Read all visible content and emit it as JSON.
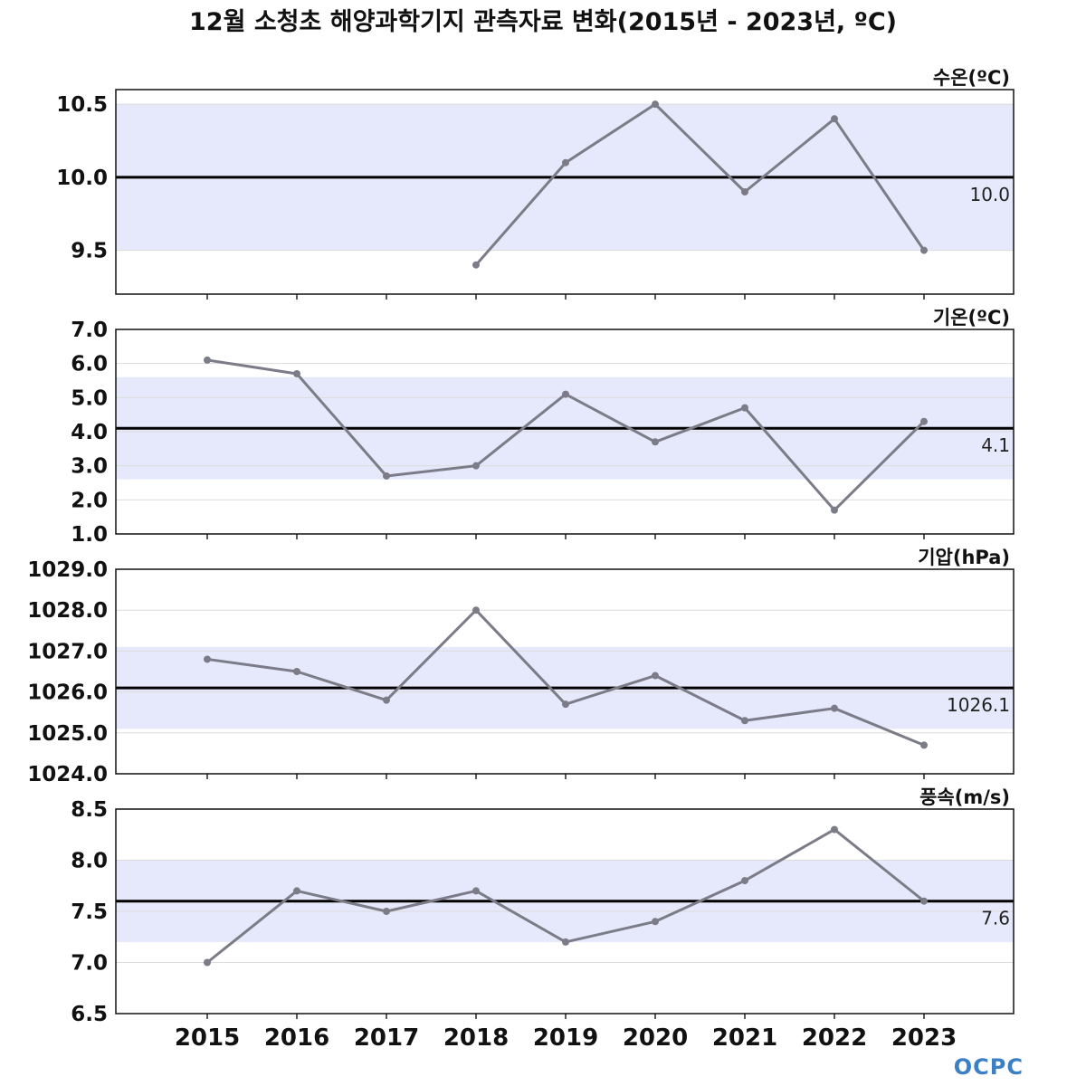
{
  "title": "12월 소청초 해양과학기지 관측자료 변화(2015년 - 2023년, ºC)",
  "logo_text": "OCPC",
  "colors": {
    "band": "#e6e9fb",
    "line": "#7c7c88",
    "mean": "#000000",
    "grid": "#dcdcdc",
    "logo": "#3b7fc4"
  },
  "chart_data": [
    {
      "type": "line",
      "title": "수온(ºC)",
      "x": [
        2015,
        2016,
        2017,
        2018,
        2019,
        2020,
        2021,
        2022,
        2023
      ],
      "series": [
        {
          "values": [
            null,
            null,
            null,
            9.4,
            10.1,
            10.5,
            9.9,
            10.4,
            9.5
          ]
        }
      ],
      "mean": 10.0,
      "mean_label": "10.0",
      "band": [
        9.5,
        10.5
      ],
      "ylim": [
        9.2,
        10.6
      ],
      "yticks": [
        9.5,
        10.0,
        10.5
      ],
      "ytick_labels": [
        "9.5",
        "10.0",
        "10.5"
      ]
    },
    {
      "type": "line",
      "title": "기온(ºC)",
      "x": [
        2015,
        2016,
        2017,
        2018,
        2019,
        2020,
        2021,
        2022,
        2023
      ],
      "series": [
        {
          "values": [
            6.1,
            5.7,
            2.7,
            3.0,
            5.1,
            3.7,
            4.7,
            1.7,
            4.3
          ]
        }
      ],
      "mean": 4.1,
      "mean_label": "4.1",
      "band": [
        2.6,
        5.6
      ],
      "ylim": [
        1.0,
        7.0
      ],
      "yticks": [
        1.0,
        2.0,
        3.0,
        4.0,
        5.0,
        6.0,
        7.0
      ],
      "ytick_labels": [
        "1.0",
        "2.0",
        "3.0",
        "4.0",
        "5.0",
        "6.0",
        "7.0"
      ]
    },
    {
      "type": "line",
      "title": "기압(hPa)",
      "x": [
        2015,
        2016,
        2017,
        2018,
        2019,
        2020,
        2021,
        2022,
        2023
      ],
      "series": [
        {
          "values": [
            1026.8,
            1026.5,
            1025.8,
            1028.0,
            1025.7,
            1026.4,
            1025.3,
            1025.6,
            1024.7
          ]
        }
      ],
      "mean": 1026.1,
      "mean_label": "1026.1",
      "band": [
        1025.1,
        1027.1
      ],
      "ylim": [
        1024.0,
        1029.0
      ],
      "yticks": [
        1024.0,
        1025.0,
        1026.0,
        1027.0,
        1028.0,
        1029.0
      ],
      "ytick_labels": [
        "1024.0",
        "1025.0",
        "1026.0",
        "1027.0",
        "1028.0",
        "1029.0"
      ]
    },
    {
      "type": "line",
      "title": "풍속(m/s)",
      "x": [
        2015,
        2016,
        2017,
        2018,
        2019,
        2020,
        2021,
        2022,
        2023
      ],
      "series": [
        {
          "values": [
            7.0,
            7.7,
            7.5,
            7.7,
            7.2,
            7.4,
            7.8,
            8.3,
            7.6
          ]
        }
      ],
      "mean": 7.6,
      "mean_label": "7.6",
      "band": [
        7.2,
        8.0
      ],
      "ylim": [
        6.5,
        8.5
      ],
      "yticks": [
        6.5,
        7.0,
        7.5,
        8.0,
        8.5
      ],
      "ytick_labels": [
        "6.5",
        "7.0",
        "7.5",
        "8.0",
        "8.5"
      ],
      "xtick_labels": [
        "2015",
        "2016",
        "2017",
        "2018",
        "2019",
        "2020",
        "2021",
        "2022",
        "2023"
      ]
    }
  ]
}
